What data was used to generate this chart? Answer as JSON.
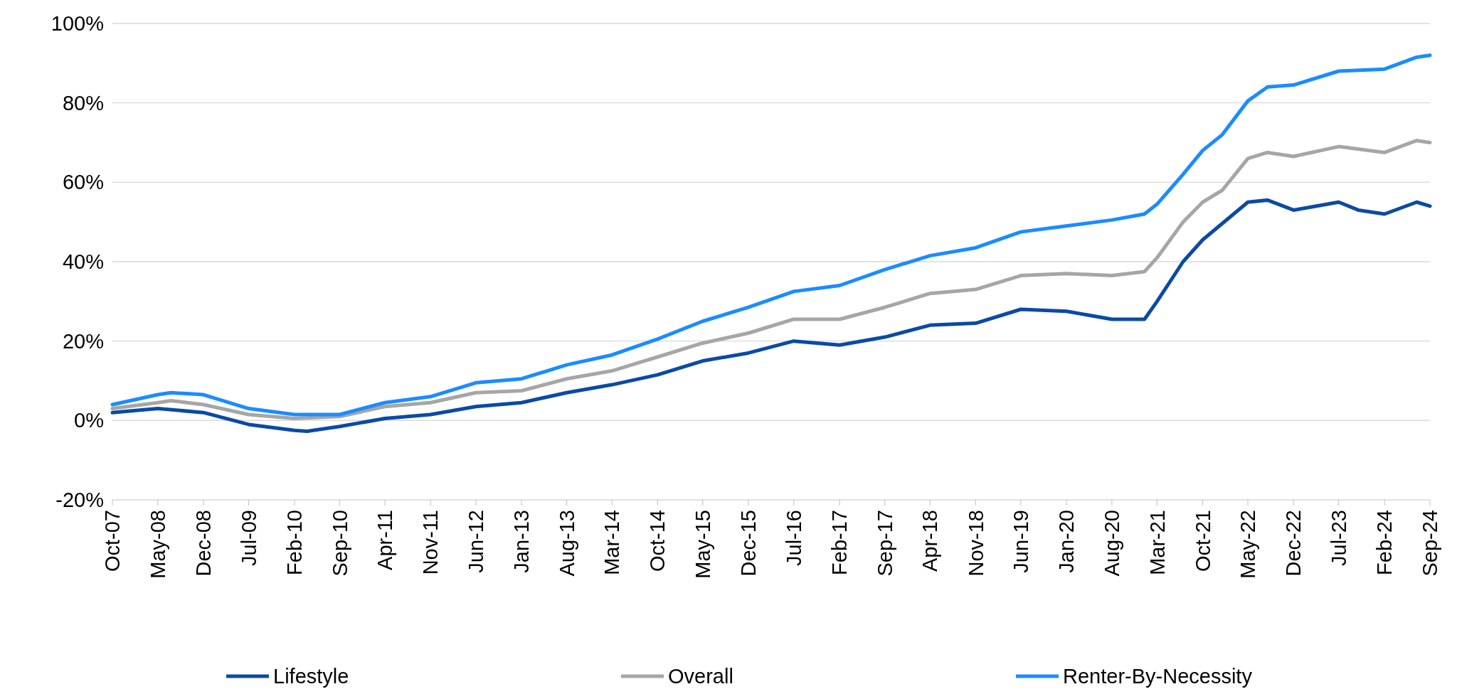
{
  "chart_data": {
    "type": "line",
    "legend": "bottom",
    "grid": "y",
    "line_style": "solid",
    "marker": "none",
    "xlim": [
      "2007-10",
      "2024-09"
    ],
    "xticks": [
      {
        "value": "2007-10",
        "label": "Oct-07"
      },
      {
        "value": "2008-05",
        "label": "May-08"
      },
      {
        "value": "2008-12",
        "label": "Dec-08"
      },
      {
        "value": "2009-07",
        "label": "Jul-09"
      },
      {
        "value": "2010-02",
        "label": "Feb-10"
      },
      {
        "value": "2010-09",
        "label": "Sep-10"
      },
      {
        "value": "2011-04",
        "label": "Apr-11"
      },
      {
        "value": "2011-11",
        "label": "Nov-11"
      },
      {
        "value": "2012-06",
        "label": "Jun-12"
      },
      {
        "value": "2013-01",
        "label": "Jan-13"
      },
      {
        "value": "2013-08",
        "label": "Aug-13"
      },
      {
        "value": "2014-03",
        "label": "Mar-14"
      },
      {
        "value": "2014-10",
        "label": "Oct-14"
      },
      {
        "value": "2015-05",
        "label": "May-15"
      },
      {
        "value": "2015-12",
        "label": "Dec-15"
      },
      {
        "value": "2016-07",
        "label": "Jul-16"
      },
      {
        "value": "2017-02",
        "label": "Feb-17"
      },
      {
        "value": "2017-09",
        "label": "Sep-17"
      },
      {
        "value": "2018-04",
        "label": "Apr-18"
      },
      {
        "value": "2018-11",
        "label": "Nov-18"
      },
      {
        "value": "2019-06",
        "label": "Jun-19"
      },
      {
        "value": "2020-01",
        "label": "Jan-20"
      },
      {
        "value": "2020-08",
        "label": "Aug-20"
      },
      {
        "value": "2021-03",
        "label": "Mar-21"
      },
      {
        "value": "2021-10",
        "label": "Oct-21"
      },
      {
        "value": "2022-05",
        "label": "May-22"
      },
      {
        "value": "2022-12",
        "label": "Dec-22"
      },
      {
        "value": "2023-07",
        "label": "Jul-23"
      },
      {
        "value": "2024-02",
        "label": "Feb-24"
      },
      {
        "value": "2024-09",
        "label": "Sep-24"
      }
    ],
    "ylim": [
      -20,
      100
    ],
    "yticks": [
      {
        "value": -20,
        "label": "-20%"
      },
      {
        "value": 0,
        "label": "0%"
      },
      {
        "value": 20,
        "label": "20%"
      },
      {
        "value": 40,
        "label": "40%"
      },
      {
        "value": 60,
        "label": "60%"
      },
      {
        "value": 80,
        "label": "80%"
      },
      {
        "value": 100,
        "label": "100%"
      }
    ],
    "series": [
      {
        "name": "Lifestyle",
        "color": "#0a4aa6",
        "x": [
          "2007-10",
          "2008-05",
          "2008-12",
          "2009-07",
          "2010-02",
          "2010-04",
          "2010-09",
          "2011-04",
          "2011-11",
          "2012-06",
          "2013-01",
          "2013-08",
          "2014-03",
          "2014-10",
          "2015-05",
          "2015-12",
          "2016-07",
          "2017-02",
          "2017-09",
          "2018-04",
          "2018-11",
          "2019-06",
          "2020-01",
          "2020-08",
          "2021-01",
          "2021-03",
          "2021-07",
          "2021-10",
          "2022-05",
          "2022-08",
          "2022-12",
          "2023-07",
          "2023-10",
          "2024-02",
          "2024-07",
          "2024-09"
        ],
        "values": [
          2,
          3,
          2,
          -1,
          -2.5,
          -2.7,
          -1.5,
          0.5,
          1.5,
          3.5,
          4.5,
          7,
          9,
          11.5,
          15,
          17,
          20,
          19,
          21,
          24,
          24.5,
          28,
          27.5,
          25.5,
          25.5,
          30,
          40,
          45.5,
          55,
          55.5,
          53,
          55,
          53,
          52,
          55,
          54
        ]
      },
      {
        "name": "Overall",
        "color": "#a6a6a6",
        "x": [
          "2007-10",
          "2008-05",
          "2008-07",
          "2008-12",
          "2009-07",
          "2010-02",
          "2010-09",
          "2011-04",
          "2011-11",
          "2012-06",
          "2013-01",
          "2013-08",
          "2014-03",
          "2014-10",
          "2015-05",
          "2015-12",
          "2016-07",
          "2017-02",
          "2017-09",
          "2018-04",
          "2018-11",
          "2019-06",
          "2020-01",
          "2020-08",
          "2021-01",
          "2021-03",
          "2021-07",
          "2021-10",
          "2022-01",
          "2022-05",
          "2022-08",
          "2022-12",
          "2023-07",
          "2024-02",
          "2024-07",
          "2024-09"
        ],
        "values": [
          3,
          4.5,
          5,
          4,
          1.5,
          0.5,
          1,
          3.5,
          4.5,
          7,
          7.5,
          10.5,
          12.5,
          16,
          19.5,
          22,
          25.5,
          25.5,
          28.5,
          32,
          33,
          36.5,
          37,
          36.5,
          37.5,
          41,
          50,
          55,
          58,
          66,
          67.5,
          66.5,
          69,
          67.5,
          70.5,
          70
        ]
      },
      {
        "name": "Renter-By-Necessity",
        "color": "#1a8cff",
        "x": [
          "2007-10",
          "2008-05",
          "2008-07",
          "2008-12",
          "2009-07",
          "2010-02",
          "2010-09",
          "2011-04",
          "2011-11",
          "2012-06",
          "2013-01",
          "2013-08",
          "2014-03",
          "2014-10",
          "2015-05",
          "2015-12",
          "2016-07",
          "2017-02",
          "2017-09",
          "2018-04",
          "2018-11",
          "2019-06",
          "2020-01",
          "2020-08",
          "2021-01",
          "2021-03",
          "2021-07",
          "2021-10",
          "2022-01",
          "2022-05",
          "2022-08",
          "2022-12",
          "2023-07",
          "2024-02",
          "2024-07",
          "2024-09"
        ],
        "values": [
          4,
          6.5,
          7,
          6.5,
          3,
          1.5,
          1.5,
          4.5,
          6,
          9.5,
          10.5,
          14,
          16.5,
          20.5,
          25,
          28.5,
          32.5,
          34,
          38,
          41.5,
          43.5,
          47.5,
          49,
          50.5,
          52,
          54.5,
          62,
          68,
          72,
          80.5,
          84,
          84.5,
          88,
          88.5,
          91.5,
          92
        ]
      }
    ]
  }
}
